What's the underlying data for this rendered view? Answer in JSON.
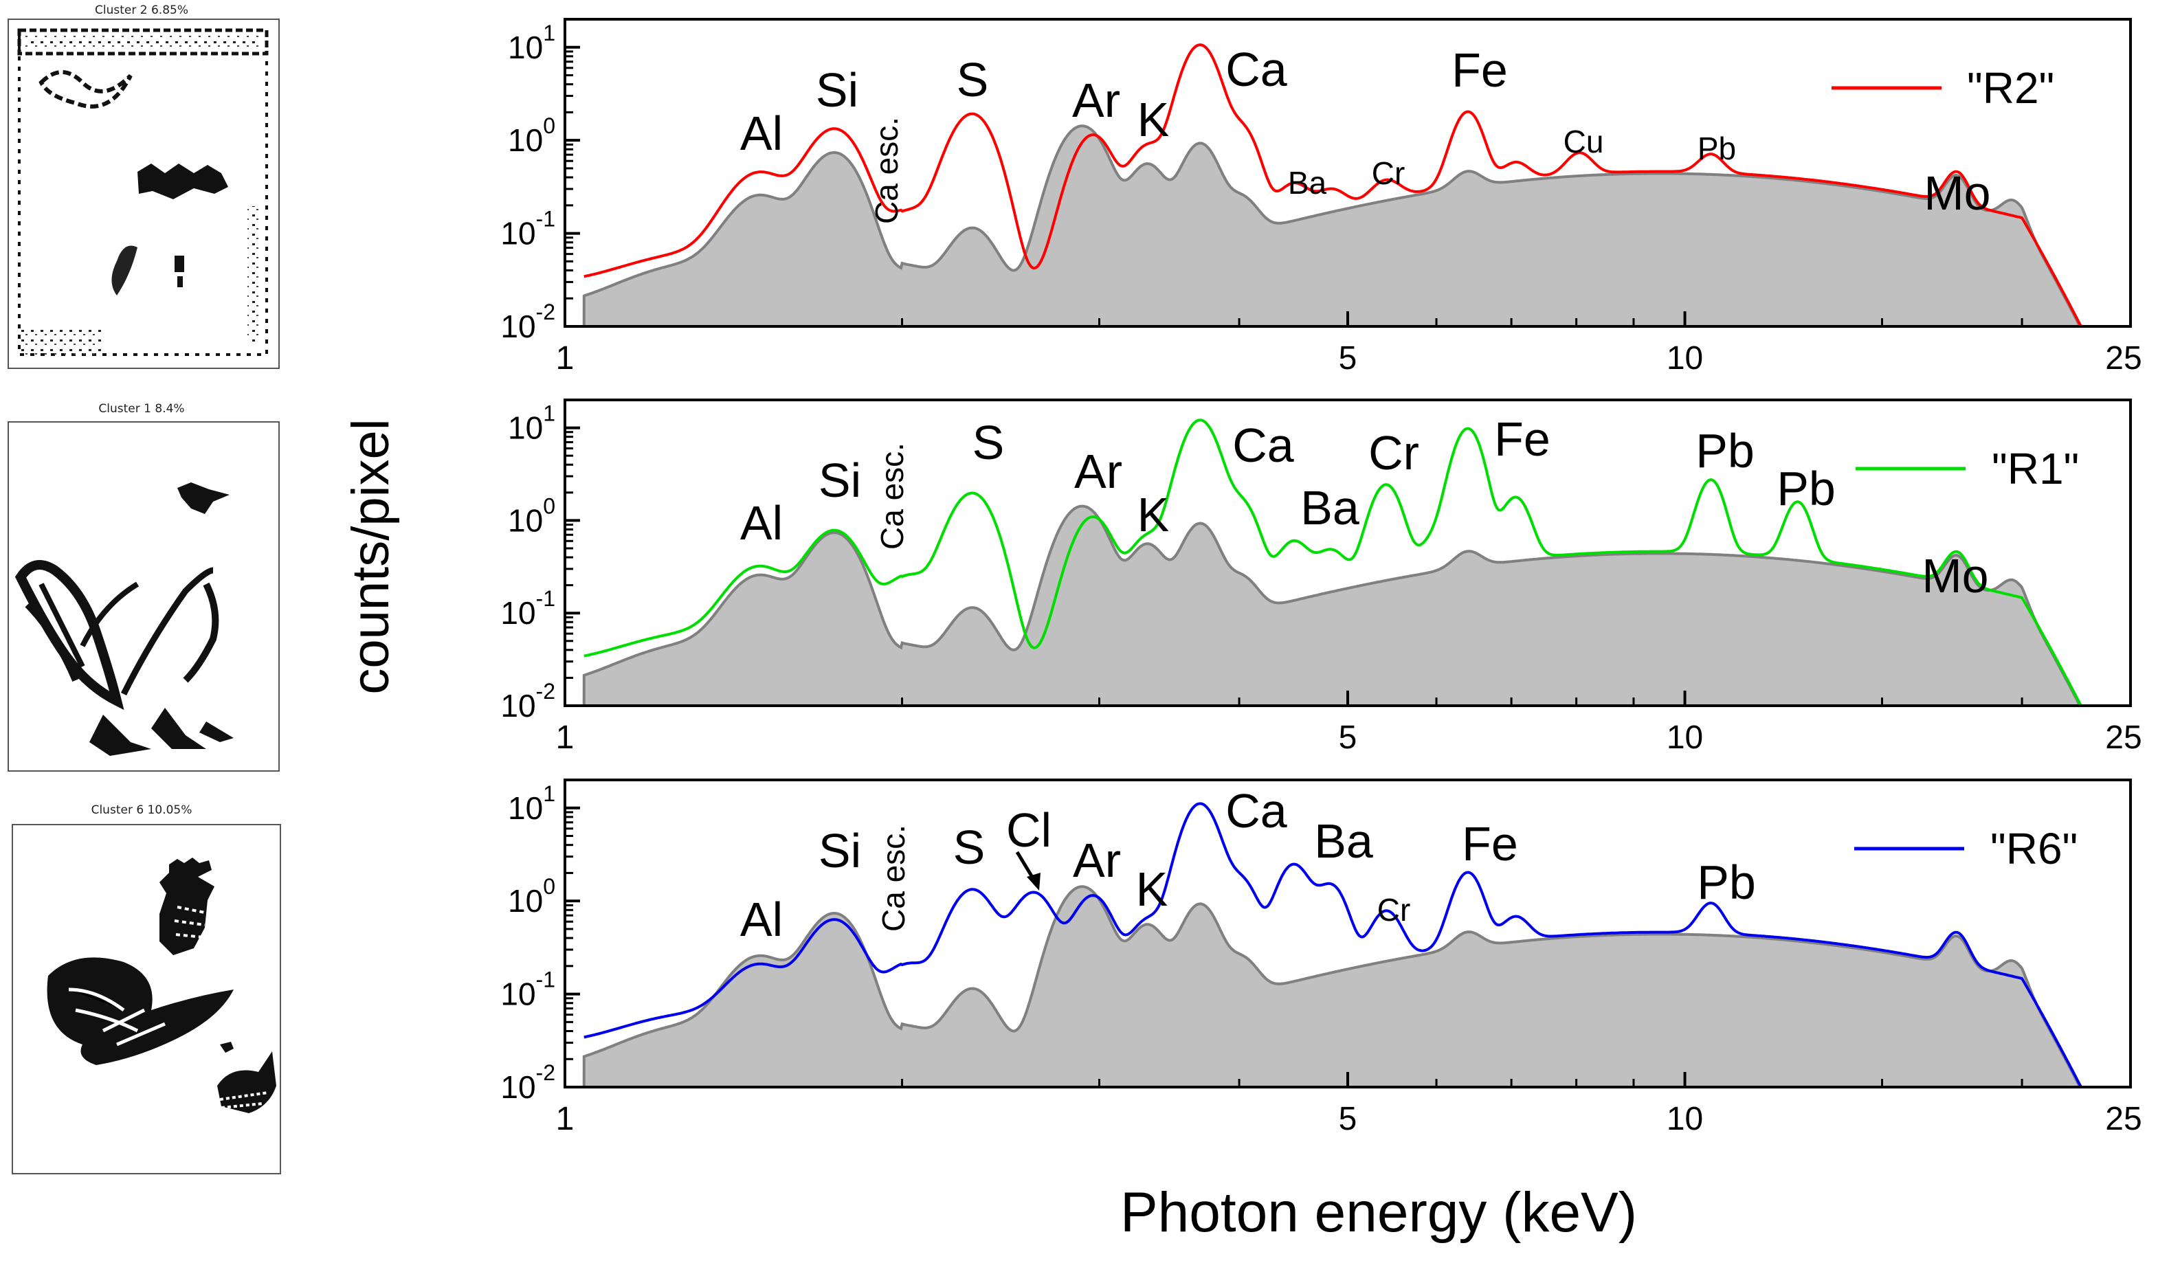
{
  "figure": {
    "ylabel": "counts/pixel",
    "xlabel": "Photon energy (keV)"
  },
  "thumbnails": [
    {
      "title": "Cluster 2  6.85%",
      "content": "stamp-border-republique"
    },
    {
      "title": "Cluster 1  8.4%",
      "content": "rooster-body"
    },
    {
      "title": "Cluster 6  10.05%",
      "content": "rooster-heads"
    }
  ],
  "chart_data": [
    {
      "type": "line",
      "xscale": "log",
      "yscale": "log",
      "xlim": [
        1,
        25
      ],
      "ylim": [
        0.01,
        20
      ],
      "xticks": [
        1,
        5,
        10,
        25
      ],
      "yticks": [
        0.01,
        0.1,
        1,
        10
      ],
      "legend": {
        "position": "top-right",
        "label": "\"R2\"",
        "color": "#ff0000"
      },
      "background_color": "#c0c0c0",
      "background_edge_color": "#808080",
      "series": [
        {
          "name": "\"R2\"",
          "color": "#ff0000",
          "peaks": [
            [
              1.49,
              0.4
            ],
            [
              1.74,
              1.3
            ],
            [
              2.02,
              0.14
            ],
            [
              2.31,
              1.9
            ],
            [
              2.96,
              1.1
            ],
            [
              3.31,
              0.8
            ],
            [
              3.69,
              10.5
            ],
            [
              4.01,
              1.3
            ],
            [
              4.47,
              0.2
            ],
            [
              4.83,
              0.12
            ],
            [
              5.41,
              0.14
            ],
            [
              6.4,
              1.7
            ],
            [
              7.06,
              0.2
            ],
            [
              8.05,
              0.3
            ],
            [
              10.55,
              0.26
            ],
            [
              17.48,
              0.25
            ]
          ]
        }
      ],
      "annotations": [
        "Al",
        "Si",
        "Ca esc.",
        "S",
        "Ar",
        "K",
        "Ca",
        "Ba",
        "Cr",
        "Fe",
        "Cu",
        "Pb",
        "Mo"
      ]
    },
    {
      "type": "line",
      "xscale": "log",
      "yscale": "log",
      "xlim": [
        1,
        25
      ],
      "ylim": [
        0.01,
        20
      ],
      "xticks": [
        1,
        5,
        10,
        25
      ],
      "yticks": [
        0.01,
        0.1,
        1,
        10
      ],
      "legend": {
        "position": "top-right",
        "label": "\"R1\"",
        "color": "#00dd00"
      },
      "background_color": "#c0c0c0",
      "background_edge_color": "#808080",
      "series": [
        {
          "name": "\"R1\"",
          "color": "#00dd00",
          "peaks": [
            [
              1.49,
              0.27
            ],
            [
              1.74,
              0.75
            ],
            [
              2.02,
              0.22
            ],
            [
              2.31,
              1.95
            ],
            [
              2.96,
              1.05
            ],
            [
              3.31,
              0.6
            ],
            [
              3.69,
              12
            ],
            [
              4.01,
              1.5
            ],
            [
              4.47,
              0.45
            ],
            [
              4.83,
              0.3
            ],
            [
              5.41,
              2.2
            ],
            [
              5.95,
              0.3
            ],
            [
              6.4,
              9.5
            ],
            [
              7.06,
              1.4
            ],
            [
              10.55,
              2.3
            ],
            [
              12.61,
              1.2
            ],
            [
              17.48,
              0.25
            ]
          ]
        }
      ],
      "annotations": [
        "Al",
        "Si",
        "Ca esc.",
        "S",
        "Ar",
        "K",
        "Ca",
        "Ba",
        "Cr",
        "Fe",
        "Pb",
        "Pb",
        "Mo"
      ]
    },
    {
      "type": "line",
      "xscale": "log",
      "yscale": "log",
      "xlim": [
        1,
        25
      ],
      "ylim": [
        0.01,
        20
      ],
      "xticks": [
        1,
        5,
        10,
        25
      ],
      "yticks": [
        0.01,
        0.1,
        1,
        10
      ],
      "legend": {
        "position": "top-right",
        "label": "\"R6\"",
        "color": "#0000ee"
      },
      "background_color": "#c0c0c0",
      "background_edge_color": "#808080",
      "series": [
        {
          "name": "\"R6\"",
          "color": "#0000ee",
          "peaks": [
            [
              1.49,
              0.16
            ],
            [
              1.74,
              0.6
            ],
            [
              2.02,
              0.18
            ],
            [
              2.31,
              1.3
            ],
            [
              2.62,
              1.2
            ],
            [
              2.96,
              1.1
            ],
            [
              3.31,
              0.55
            ],
            [
              3.69,
              11
            ],
            [
              4.01,
              1.6
            ],
            [
              4.47,
              2.3
            ],
            [
              4.83,
              1.3
            ],
            [
              5.41,
              0.55
            ],
            [
              6.4,
              1.7
            ],
            [
              7.06,
              0.3
            ],
            [
              10.55,
              0.5
            ],
            [
              17.48,
              0.25
            ]
          ]
        }
      ],
      "annotations": [
        "Al",
        "Si",
        "Ca esc.",
        "S",
        "Cl",
        "Ar",
        "K",
        "Ca",
        "Ba",
        "Cr",
        "Fe",
        "Pb"
      ]
    }
  ]
}
